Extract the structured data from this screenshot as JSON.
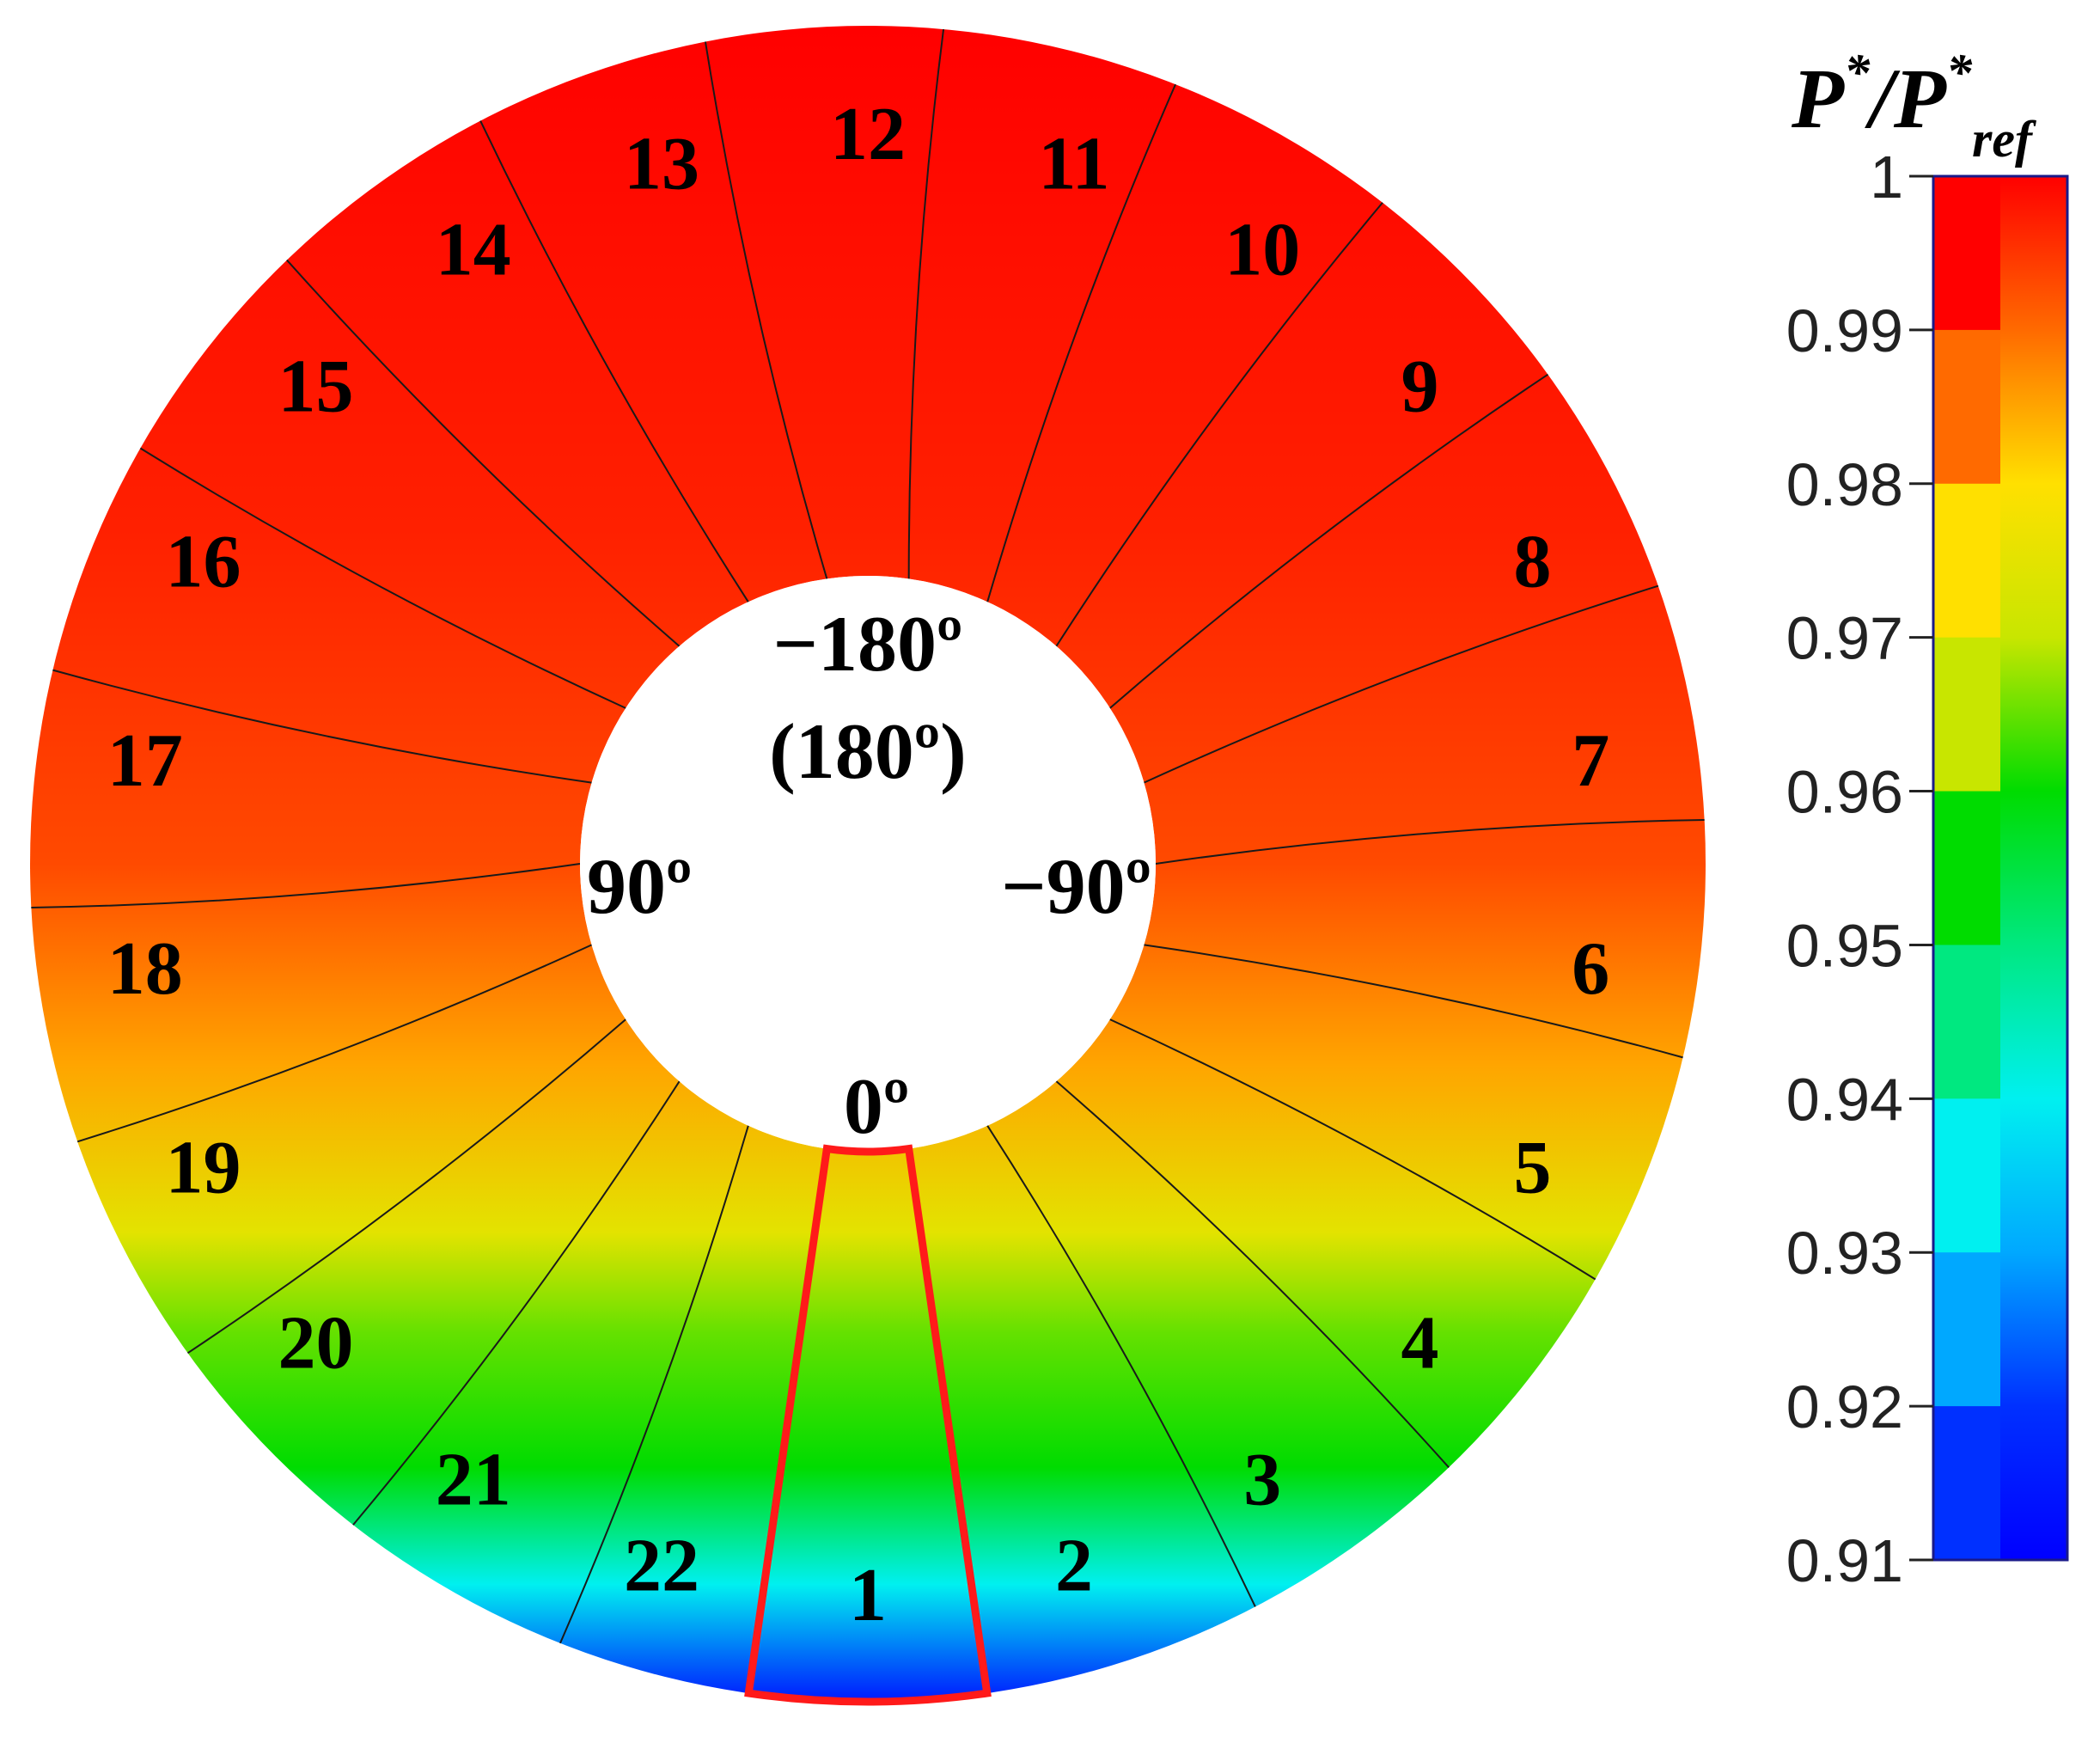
{
  "chart_data": {
    "type": "heatmap",
    "subtype": "annular-contour",
    "colorbar": {
      "title_main": "P",
      "title_sup": "*",
      "title_sep": "/",
      "title_main2": "P",
      "title_sup2": "*",
      "title_sub2": "ref",
      "range": [
        0.91,
        1.0
      ],
      "ticks": [
        "1",
        "0.99",
        "0.98",
        "0.97",
        "0.96",
        "0.95",
        "0.94",
        "0.93",
        "0.92",
        "0.91"
      ],
      "tick_values": [
        1.0,
        0.99,
        0.98,
        0.97,
        0.96,
        0.95,
        0.94,
        0.93,
        0.92,
        0.91
      ],
      "colors": [
        "#ff0000",
        "#ff6a00",
        "#ffe000",
        "#c8e600",
        "#00dc00",
        "#00e880",
        "#00f0f0",
        "#00a8ff",
        "#0030ff",
        "#0000ff"
      ]
    },
    "sectors": [
      {
        "label": "1",
        "angle_deg": 0,
        "highlighted": true
      },
      {
        "label": "2",
        "angle_deg": -16.4
      },
      {
        "label": "3",
        "angle_deg": -32.7
      },
      {
        "label": "4",
        "angle_deg": -49.1
      },
      {
        "label": "5",
        "angle_deg": -65.5
      },
      {
        "label": "6",
        "angle_deg": -81.8
      },
      {
        "label": "7",
        "angle_deg": -98.2
      },
      {
        "label": "8",
        "angle_deg": -114.5
      },
      {
        "label": "9",
        "angle_deg": -130.9
      },
      {
        "label": "10",
        "angle_deg": -147.3
      },
      {
        "label": "11",
        "angle_deg": -163.6
      },
      {
        "label": "12",
        "angle_deg": 180
      },
      {
        "label": "13",
        "angle_deg": 163.6
      },
      {
        "label": "14",
        "angle_deg": 147.3
      },
      {
        "label": "15",
        "angle_deg": 130.9
      },
      {
        "label": "16",
        "angle_deg": 114.5
      },
      {
        "label": "17",
        "angle_deg": 98.2
      },
      {
        "label": "18",
        "angle_deg": 81.8
      },
      {
        "label": "19",
        "angle_deg": 65.5
      },
      {
        "label": "20",
        "angle_deg": 49.1
      },
      {
        "label": "21",
        "angle_deg": 32.7
      },
      {
        "label": "22",
        "angle_deg": 16.4
      }
    ],
    "field_gradient": [
      {
        "rel": 0.0,
        "value": 1.0
      },
      {
        "rel": 0.3,
        "value": 0.997
      },
      {
        "rel": 0.5,
        "value": 0.993
      },
      {
        "rel": 0.62,
        "value": 0.985
      },
      {
        "rel": 0.72,
        "value": 0.975
      },
      {
        "rel": 0.78,
        "value": 0.965
      },
      {
        "rel": 0.86,
        "value": 0.96
      },
      {
        "rel": 0.93,
        "value": 0.94
      },
      {
        "rel": 1.0,
        "value": 0.915
      }
    ],
    "angle_labels": {
      "top_line1": "−180º",
      "top_line2": "(180º)",
      "left": "90º",
      "right": "−90º",
      "bottom": "0º"
    }
  }
}
